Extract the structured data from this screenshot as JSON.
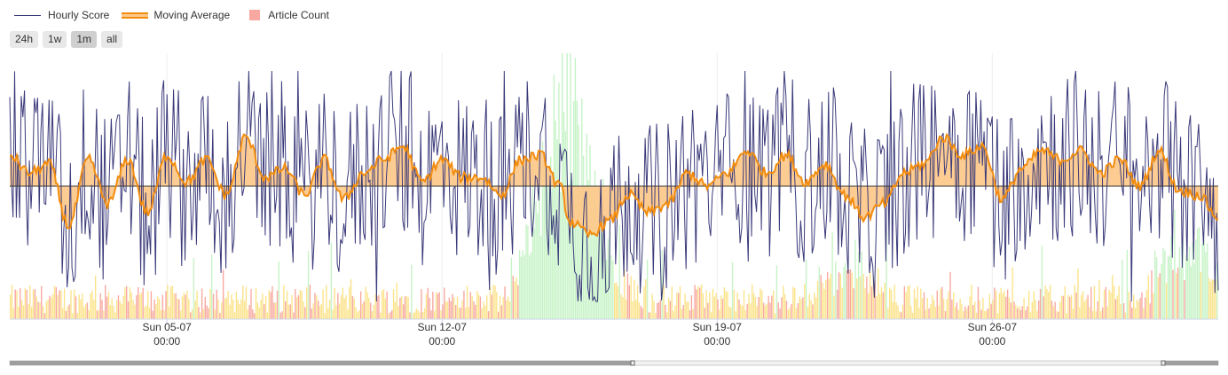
{
  "legend": {
    "hourly_score": "Hourly Score",
    "moving_average": "Moving Average",
    "article_count": "Article Count"
  },
  "range_buttons": [
    {
      "label": "24h",
      "active": false
    },
    {
      "label": "1w",
      "active": false
    },
    {
      "label": "1m",
      "active": true
    },
    {
      "label": "all",
      "active": false
    }
  ],
  "colors": {
    "hourly_score": "#3b3a7a",
    "moving_average_line": "#f28c0f",
    "moving_average_fill": "#fcc98c",
    "bar_green": "#c6f3c6",
    "bar_yellow": "#fbe38a",
    "bar_red": "#f7a8a0",
    "grid": "#eeeeee",
    "baseline": "#333333"
  },
  "chart_data": {
    "type": "line",
    "x_start": "2023-07-01 00:00",
    "x_end": "2023-07-31 18:00",
    "x_ticks": [
      {
        "date": "2023-07-05 00:00",
        "line1": "Sun 05-07",
        "line2": "00:00"
      },
      {
        "date": "2023-07-12 00:00",
        "line1": "Sun 12-07",
        "line2": "00:00"
      },
      {
        "date": "2023-07-19 00:00",
        "line1": "Sun 19-07",
        "line2": "00:00"
      },
      {
        "date": "2023-07-26 00:00",
        "line1": "Sun 26-07",
        "line2": "00:00"
      }
    ],
    "series": [
      {
        "name": "Hourly Score",
        "kind": "line"
      },
      {
        "name": "Moving Average",
        "kind": "area"
      },
      {
        "name": "Article Count",
        "kind": "bar"
      }
    ],
    "moving_average_keypoints": [
      [
        "2023-07-01 00:00",
        0.35
      ],
      [
        "2023-07-01 12:00",
        0.15
      ],
      [
        "2023-07-02 00:00",
        0.25
      ],
      [
        "2023-07-02 12:00",
        -0.45
      ],
      [
        "2023-07-03 00:00",
        0.3
      ],
      [
        "2023-07-03 12:00",
        -0.2
      ],
      [
        "2023-07-04 00:00",
        0.3
      ],
      [
        "2023-07-04 12:00",
        -0.3
      ],
      [
        "2023-07-05 00:00",
        0.35
      ],
      [
        "2023-07-05 12:00",
        0.05
      ],
      [
        "2023-07-06 00:00",
        0.3
      ],
      [
        "2023-07-06 12:00",
        -0.1
      ],
      [
        "2023-07-07 00:00",
        0.55
      ],
      [
        "2023-07-07 12:00",
        0.1
      ],
      [
        "2023-07-08 00:00",
        0.2
      ],
      [
        "2023-07-08 12:00",
        -0.1
      ],
      [
        "2023-07-09 00:00",
        0.3
      ],
      [
        "2023-07-09 12:00",
        -0.15
      ],
      [
        "2023-07-10 00:00",
        0.15
      ],
      [
        "2023-07-10 12:00",
        0.3
      ],
      [
        "2023-07-11 00:00",
        0.45
      ],
      [
        "2023-07-11 12:00",
        0.05
      ],
      [
        "2023-07-12 00:00",
        0.3
      ],
      [
        "2023-07-12 12:00",
        0.1
      ],
      [
        "2023-07-13 00:00",
        0.1
      ],
      [
        "2023-07-13 12:00",
        -0.1
      ],
      [
        "2023-07-14 00:00",
        0.3
      ],
      [
        "2023-07-14 12:00",
        0.35
      ],
      [
        "2023-07-15 00:00",
        0.0
      ],
      [
        "2023-07-15 06:00",
        -0.4
      ],
      [
        "2023-07-15 18:00",
        -0.55
      ],
      [
        "2023-07-16 06:00",
        -0.4
      ],
      [
        "2023-07-16 18:00",
        -0.1
      ],
      [
        "2023-07-17 06:00",
        -0.3
      ],
      [
        "2023-07-17 18:00",
        -0.2
      ],
      [
        "2023-07-18 06:00",
        0.15
      ],
      [
        "2023-07-18 18:00",
        0.0
      ],
      [
        "2023-07-19 06:00",
        0.15
      ],
      [
        "2023-07-19 18:00",
        0.4
      ],
      [
        "2023-07-20 06:00",
        0.15
      ],
      [
        "2023-07-20 18:00",
        0.35
      ],
      [
        "2023-07-21 06:00",
        0.05
      ],
      [
        "2023-07-21 18:00",
        0.25
      ],
      [
        "2023-07-22 06:00",
        -0.1
      ],
      [
        "2023-07-22 18:00",
        -0.35
      ],
      [
        "2023-07-23 06:00",
        -0.2
      ],
      [
        "2023-07-23 18:00",
        0.15
      ],
      [
        "2023-07-24 06:00",
        0.25
      ],
      [
        "2023-07-24 18:00",
        0.55
      ],
      [
        "2023-07-25 06:00",
        0.35
      ],
      [
        "2023-07-25 18:00",
        0.45
      ],
      [
        "2023-07-26 06:00",
        -0.15
      ],
      [
        "2023-07-26 18:00",
        0.2
      ],
      [
        "2023-07-27 06:00",
        0.4
      ],
      [
        "2023-07-27 18:00",
        0.3
      ],
      [
        "2023-07-28 06:00",
        0.4
      ],
      [
        "2023-07-28 18:00",
        0.15
      ],
      [
        "2023-07-29 06:00",
        0.3
      ],
      [
        "2023-07-29 18:00",
        0.0
      ],
      [
        "2023-07-30 06:00",
        0.4
      ],
      [
        "2023-07-30 18:00",
        -0.05
      ],
      [
        "2023-07-31 06:00",
        -0.1
      ],
      [
        "2023-07-31 18:00",
        -0.35
      ]
    ],
    "hourly_score_range": [
      -1.3,
      1.3
    ],
    "article_spikes": [
      {
        "date": "2023-07-15 02:00",
        "value": 40
      },
      {
        "date": "2023-07-15 20:00",
        "value": 9
      },
      {
        "date": "2023-07-22 08:00",
        "value": 7
      },
      {
        "date": "2023-07-31 00:00",
        "value": 12
      }
    ],
    "ylim": [
      -1.5,
      1.5
    ],
    "grid": true
  }
}
